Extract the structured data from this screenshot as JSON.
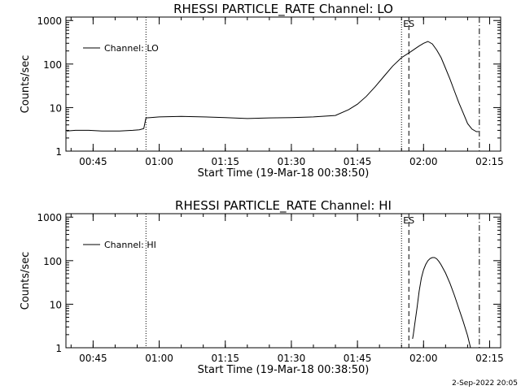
{
  "chart_data": [
    {
      "type": "line",
      "title": "RHESSI PARTICLE_RATE Channel: LO",
      "xlabel": "Start Time (19-Mar-18 00:38:50)",
      "ylabel": "Counts/sec",
      "x_ticks": [
        "00:45",
        "01:00",
        "01:15",
        "01:30",
        "01:45",
        "02:00",
        "02:15"
      ],
      "y_ticks": [
        "1",
        "10",
        "100",
        "1000"
      ],
      "y_scale": "log",
      "xlim": [
        "00:38:50",
        "02:17:30"
      ],
      "ylim": [
        1,
        1200
      ],
      "legend": "top-left",
      "series": [
        {
          "name": "Channel: LO",
          "x": [
            "00:39:00",
            "00:41:00",
            "00:44:00",
            "00:47:00",
            "00:51:00",
            "00:54:00",
            "00:55:30",
            "00:56:30",
            "00:57:00",
            "00:58:00",
            "01:00:00",
            "01:05:00",
            "01:10:00",
            "01:15:00",
            "01:20:00",
            "01:25:00",
            "01:30:00",
            "01:35:00",
            "01:40:00",
            "01:43:00",
            "01:45:00",
            "01:47:00",
            "01:49:00",
            "01:51:00",
            "01:53:00",
            "01:55:00",
            "01:57:00",
            "01:59:00",
            "02:00:00",
            "02:01:00",
            "02:02:00",
            "02:03:00",
            "02:04:00",
            "02:05:00",
            "02:06:00",
            "02:07:00",
            "02:08:00",
            "02:09:00",
            "02:10:00",
            "02:11:00",
            "02:12:00",
            "02:12:30"
          ],
          "y": [
            2.9,
            3.0,
            3.0,
            2.9,
            2.9,
            3.0,
            3.1,
            3.3,
            5.8,
            5.9,
            6.1,
            6.3,
            6.1,
            5.9,
            5.6,
            5.8,
            5.9,
            6.1,
            6.6,
            9,
            12,
            18,
            30,
            52,
            90,
            140,
            190,
            260,
            300,
            330,
            290,
            210,
            140,
            80,
            45,
            24,
            13,
            7.5,
            4.3,
            3.2,
            2.8,
            2.8
          ]
        }
      ],
      "markers": {
        "dotted": [
          "00:57:00",
          "01:55:00"
        ],
        "dashed": [
          "01:56:40"
        ],
        "dash_dot": [
          "02:12:40"
        ],
        "label": "ES"
      }
    },
    {
      "type": "line",
      "title": "RHESSI PARTICLE_RATE Channel: HI",
      "xlabel": "Start Time (19-Mar-18 00:38:50)",
      "ylabel": "Counts/sec",
      "x_ticks": [
        "00:45",
        "01:00",
        "01:15",
        "01:30",
        "01:45",
        "02:00",
        "02:15"
      ],
      "y_ticks": [
        "1",
        "10",
        "100",
        "1000"
      ],
      "y_scale": "log",
      "xlim": [
        "00:38:50",
        "02:17:30"
      ],
      "ylim": [
        1,
        1200
      ],
      "legend": "top-left",
      "series": [
        {
          "name": "Channel: HI",
          "x": [
            "01:57:30",
            "01:57:40",
            "01:58:00",
            "01:58:30",
            "01:59:00",
            "01:59:30",
            "02:00:00",
            "02:00:30",
            "02:01:00",
            "02:01:30",
            "02:02:00",
            "02:02:30",
            "02:03:00",
            "02:03:30",
            "02:04:00",
            "02:05:00",
            "02:06:00",
            "02:07:00",
            "02:08:00",
            "02:09:00",
            "02:10:00",
            "02:10:40"
          ],
          "y": [
            1.6,
            2.0,
            3.5,
            8,
            20,
            40,
            62,
            82,
            100,
            112,
            118,
            118,
            110,
            96,
            80,
            52,
            30,
            16,
            8,
            4,
            1.9,
            1.0
          ]
        }
      ],
      "markers": {
        "dotted": [
          "00:57:00",
          "01:55:00"
        ],
        "dashed": [
          "01:56:40"
        ],
        "dash_dot": [
          "02:12:40"
        ],
        "label": "ES"
      }
    }
  ],
  "footer": {
    "timestamp": "2-Sep-2022 20:05"
  }
}
